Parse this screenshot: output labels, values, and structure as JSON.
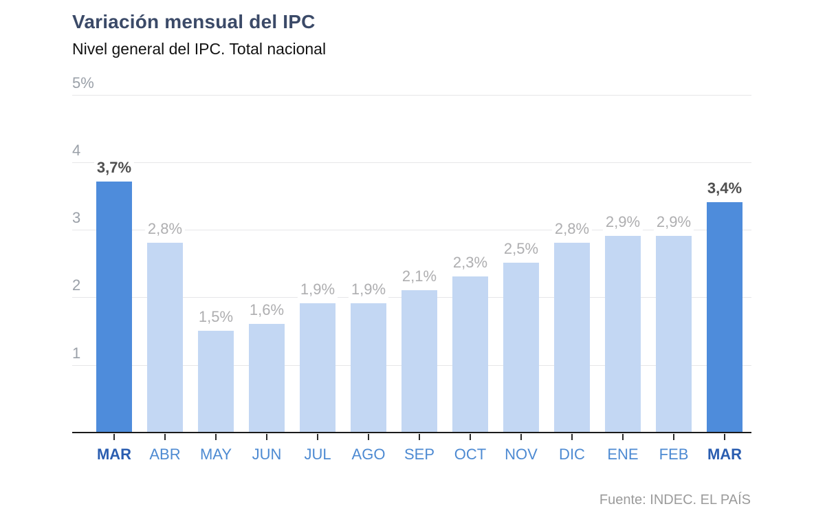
{
  "header": {
    "title": "Variación mensual del IPC",
    "subtitle": "Nivel general del IPC. Total nacional"
  },
  "footer": {
    "source": "Fuente: INDEC. EL PAÍS"
  },
  "colors": {
    "bar_highlight": "#4e8cdb",
    "bar_regular": "#c3d7f3",
    "title_text": "#3b4a68",
    "month_label": "#4d8ad2",
    "month_label_highlight": "#2a5db0",
    "value_label": "#aeaeb0",
    "value_label_highlight": "#4f4f4f",
    "gridline": "#e6e6e8",
    "axis_line": "#1a1a1a",
    "ytick_label": "#9aa0a8",
    "source_text": "#9b9b9b"
  },
  "chart_data": {
    "type": "bar",
    "title": "Variación mensual del IPC",
    "subtitle": "Nivel general del IPC. Total nacional",
    "categories": [
      "MAR",
      "ABR",
      "MAY",
      "JUN",
      "JUL",
      "AGO",
      "SEP",
      "OCT",
      "NOV",
      "DIC",
      "ENE",
      "FEB",
      "MAR"
    ],
    "values": [
      3.7,
      2.8,
      1.5,
      1.6,
      1.9,
      1.9,
      2.1,
      2.3,
      2.5,
      2.8,
      2.9,
      2.9,
      3.4
    ],
    "value_labels": [
      "3,7%",
      "2,8%",
      "1,5%",
      "1,6%",
      "1,9%",
      "1,9%",
      "2,1%",
      "2,3%",
      "2,5%",
      "2,8%",
      "2,9%",
      "2,9%",
      "3,4%"
    ],
    "highlighted_indices": [
      0,
      12
    ],
    "xlabel": "",
    "ylabel": "",
    "ylim": [
      0,
      5
    ],
    "yticks": [
      {
        "value": 1,
        "label": "1"
      },
      {
        "value": 2,
        "label": "2"
      },
      {
        "value": 3,
        "label": "3"
      },
      {
        "value": 4,
        "label": "4"
      },
      {
        "value": 5,
        "label": "5%"
      }
    ],
    "grid": "horizontal-only",
    "legend_position": "none",
    "source": "Fuente: INDEC. EL PAÍS"
  }
}
